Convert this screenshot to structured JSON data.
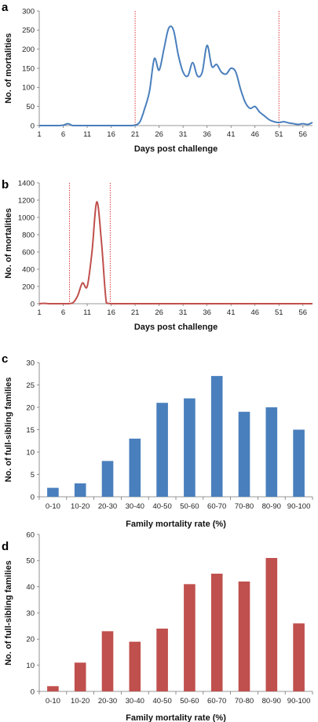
{
  "chart_data": [
    {
      "panel": "a",
      "type": "line",
      "xlabel": "Days post challenge",
      "ylabel": "No. of mortalities",
      "xlim": [
        1,
        58
      ],
      "ylim": [
        0,
        300
      ],
      "x_ticks": [
        1,
        6,
        11,
        16,
        21,
        26,
        31,
        36,
        41,
        46,
        51,
        56
      ],
      "y_ticks": [
        0,
        50,
        100,
        150,
        200,
        250,
        300
      ],
      "color": "#4a7fbd",
      "reference_lines_x": [
        21,
        51
      ],
      "reference_color": "#e0383b",
      "series": [
        {
          "x": [
            1,
            2,
            3,
            4,
            5,
            6,
            7,
            8,
            9,
            10,
            11,
            12,
            13,
            14,
            15,
            16,
            17,
            18,
            19,
            20,
            21,
            22,
            23,
            24,
            25,
            26,
            27,
            28,
            29,
            30,
            31,
            32,
            33,
            34,
            35,
            36,
            37,
            38,
            39,
            40,
            41,
            42,
            43,
            44,
            45,
            46,
            47,
            48,
            49,
            50,
            51,
            52,
            53,
            54,
            55,
            56,
            57,
            58
          ],
          "y": [
            0,
            0,
            0,
            0,
            0,
            1,
            5,
            0,
            0,
            0,
            0,
            0,
            0,
            0,
            0,
            0,
            0,
            0,
            0,
            0,
            1,
            10,
            45,
            90,
            175,
            145,
            200,
            255,
            250,
            185,
            140,
            130,
            165,
            130,
            140,
            210,
            155,
            160,
            140,
            135,
            150,
            140,
            95,
            60,
            45,
            50,
            35,
            25,
            15,
            10,
            8,
            10,
            7,
            5,
            3,
            5,
            3,
            8
          ]
        }
      ]
    },
    {
      "panel": "b",
      "type": "line",
      "xlabel": "Days post challenge",
      "ylabel": "No. of mortalities",
      "xlim": [
        1,
        58
      ],
      "ylim": [
        0,
        1400
      ],
      "x_ticks": [
        1,
        6,
        11,
        16,
        21,
        26,
        31,
        36,
        41,
        46,
        51,
        56
      ],
      "y_ticks": [
        0,
        200,
        400,
        600,
        800,
        1000,
        1200,
        1400
      ],
      "color": "#c0504d",
      "reference_lines_x": [
        7.3,
        15.8
      ],
      "reference_color": "#e0383b",
      "series": [
        {
          "x": [
            1,
            2,
            3,
            4,
            5,
            6,
            7,
            8,
            9,
            10,
            11,
            12,
            13,
            14,
            15,
            16,
            17,
            18,
            19,
            20,
            21,
            22,
            23,
            24,
            25,
            26,
            27,
            28,
            29,
            30,
            31,
            32,
            33,
            34,
            35,
            36,
            37,
            38,
            39,
            40,
            41,
            42,
            43,
            44,
            45,
            46,
            47,
            48,
            49,
            50,
            51,
            52,
            53,
            54,
            55,
            56,
            57,
            58
          ],
          "y": [
            0,
            5,
            0,
            0,
            0,
            0,
            0,
            10,
            90,
            240,
            200,
            600,
            1180,
            700,
            10,
            0,
            0,
            0,
            0,
            0,
            0,
            0,
            0,
            0,
            0,
            0,
            0,
            0,
            0,
            0,
            0,
            0,
            0,
            0,
            0,
            0,
            0,
            0,
            0,
            0,
            0,
            0,
            0,
            0,
            0,
            0,
            0,
            0,
            0,
            0,
            0,
            0,
            0,
            0,
            0,
            0,
            0,
            0
          ]
        }
      ]
    },
    {
      "panel": "c",
      "type": "bar",
      "xlabel": "Family mortality rate (%)",
      "ylabel": "No. of full-sibling families",
      "ylim": [
        0,
        30
      ],
      "y_ticks": [
        0,
        5,
        10,
        15,
        20,
        25,
        30
      ],
      "color": "#4a7fbd",
      "categories": [
        "0-10",
        "10-20",
        "20-30",
        "30-40",
        "40-50",
        "50-60",
        "60-70",
        "70-80",
        "80-90",
        "90-100"
      ],
      "values": [
        2,
        3,
        8,
        13,
        21,
        22,
        27,
        19,
        20,
        15
      ]
    },
    {
      "panel": "d",
      "type": "bar",
      "xlabel": "Family mortality rate (%)",
      "ylabel": "No. of full-sibling families",
      "ylim": [
        0,
        60
      ],
      "y_ticks": [
        0,
        10,
        20,
        30,
        40,
        50,
        60
      ],
      "color": "#c0504d",
      "categories": [
        "0-10",
        "10-20",
        "20-30",
        "30-40",
        "40-50",
        "50-60",
        "60-70",
        "70-80",
        "80-90",
        "90-100"
      ],
      "values": [
        2,
        11,
        23,
        19,
        24,
        41,
        45,
        42,
        51,
        26
      ]
    }
  ]
}
